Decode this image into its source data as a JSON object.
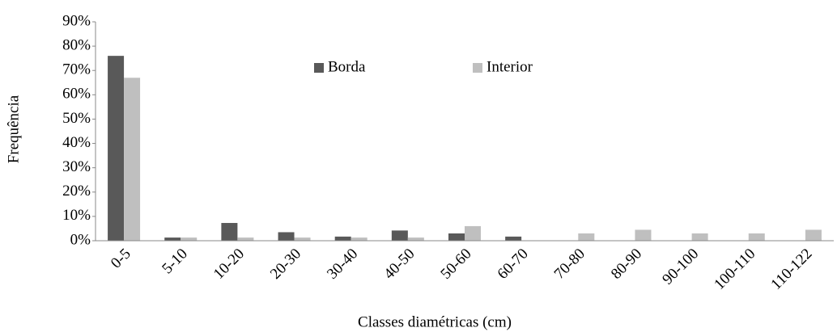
{
  "chart_data": {
    "type": "bar",
    "xlabel": "Classes diamétricas (cm)",
    "ylabel": "Frequência",
    "categories": [
      "0-5",
      "5-10",
      "10-20",
      "20-30",
      "30-40",
      "40-50",
      "50-60",
      "60-70",
      "70-80",
      "80-90",
      "90-100",
      "100-110",
      "110-122"
    ],
    "series": [
      {
        "name": "Borda",
        "color": "#595959",
        "values": [
          76,
          1.3,
          7.3,
          3.5,
          1.7,
          4.2,
          3,
          1.7,
          0,
          0,
          0,
          0,
          0
        ]
      },
      {
        "name": "Interior",
        "color": "#bfbfbf",
        "values": [
          67,
          1.3,
          1.3,
          1.3,
          1.3,
          1.3,
          6,
          0,
          3,
          4.5,
          3,
          3,
          4.5
        ]
      }
    ],
    "ylim": [
      0,
      90
    ],
    "yticks": [
      {
        "value": 0,
        "label": "0%"
      },
      {
        "value": 10,
        "label": "10%"
      },
      {
        "value": 20,
        "label": "20%"
      },
      {
        "value": 30,
        "label": "30%"
      },
      {
        "value": 40,
        "label": "40%"
      },
      {
        "value": 50,
        "label": "50%"
      },
      {
        "value": 60,
        "label": "60%"
      },
      {
        "value": 70,
        "label": "70%"
      },
      {
        "value": 80,
        "label": "80%"
      },
      {
        "value": 90,
        "label": "90%"
      }
    ],
    "grid": false,
    "legend": "top"
  }
}
